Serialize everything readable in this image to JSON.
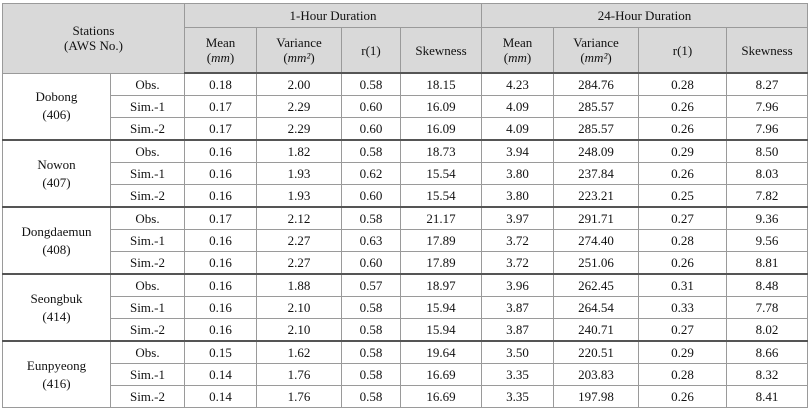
{
  "header": {
    "stations_line1": "Stations",
    "stations_line2": "(AWS No.)",
    "group_1hour": "1-Hour Duration",
    "group_24hour": "24-Hour Duration",
    "columns": [
      {
        "top": "Mean",
        "bottom": "mm"
      },
      {
        "top": "Variance",
        "bottom": "mm²"
      },
      {
        "label": "r(1)"
      },
      {
        "label": "Skewness"
      },
      {
        "top": "Mean",
        "bottom": "mm"
      },
      {
        "top": "Variance",
        "bottom": "mm²"
      },
      {
        "label": "r(1)"
      },
      {
        "label": "Skewness"
      }
    ]
  },
  "stations": [
    {
      "name": "Dobong",
      "aws": "(406)",
      "rows": [
        {
          "type": "Obs.",
          "values": [
            "0.18",
            "2.00",
            "0.58",
            "18.15",
            "4.23",
            "284.76",
            "0.28",
            "8.27"
          ]
        },
        {
          "type": "Sim.-1",
          "values": [
            "0.17",
            "2.29",
            "0.60",
            "16.09",
            "4.09",
            "285.57",
            "0.26",
            "7.96"
          ]
        },
        {
          "type": "Sim.-2",
          "values": [
            "0.17",
            "2.29",
            "0.60",
            "16.09",
            "4.09",
            "285.57",
            "0.26",
            "7.96"
          ]
        }
      ]
    },
    {
      "name": "Nowon",
      "aws": "(407)",
      "rows": [
        {
          "type": "Obs.",
          "values": [
            "0.16",
            "1.82",
            "0.58",
            "18.73",
            "3.94",
            "248.09",
            "0.29",
            "8.50"
          ]
        },
        {
          "type": "Sim.-1",
          "values": [
            "0.16",
            "1.93",
            "0.62",
            "15.54",
            "3.80",
            "237.84",
            "0.26",
            "8.03"
          ]
        },
        {
          "type": "Sim.-2",
          "values": [
            "0.16",
            "1.93",
            "0.60",
            "15.54",
            "3.80",
            "223.21",
            "0.25",
            "7.82"
          ]
        }
      ]
    },
    {
      "name": "Dongdaemun",
      "aws": "(408)",
      "rows": [
        {
          "type": "Obs.",
          "values": [
            "0.17",
            "2.12",
            "0.58",
            "21.17",
            "3.97",
            "291.71",
            "0.27",
            "9.36"
          ]
        },
        {
          "type": "Sim.-1",
          "values": [
            "0.16",
            "2.27",
            "0.63",
            "17.89",
            "3.72",
            "274.40",
            "0.28",
            "9.56"
          ]
        },
        {
          "type": "Sim.-2",
          "values": [
            "0.16",
            "2.27",
            "0.60",
            "17.89",
            "3.72",
            "251.06",
            "0.26",
            "8.81"
          ]
        }
      ]
    },
    {
      "name": "Seongbuk",
      "aws": "(414)",
      "rows": [
        {
          "type": "Obs.",
          "values": [
            "0.16",
            "1.88",
            "0.57",
            "18.97",
            "3.96",
            "262.45",
            "0.31",
            "8.48"
          ]
        },
        {
          "type": "Sim.-1",
          "values": [
            "0.16",
            "2.10",
            "0.58",
            "15.94",
            "3.87",
            "264.54",
            "0.33",
            "7.78"
          ]
        },
        {
          "type": "Sim.-2",
          "values": [
            "0.16",
            "2.10",
            "0.58",
            "15.94",
            "3.87",
            "240.71",
            "0.27",
            "8.02"
          ]
        }
      ]
    },
    {
      "name": "Eunpyeong",
      "aws": "(416)",
      "rows": [
        {
          "type": "Obs.",
          "values": [
            "0.15",
            "1.62",
            "0.58",
            "19.64",
            "3.50",
            "220.51",
            "0.29",
            "8.66"
          ]
        },
        {
          "type": "Sim.-1",
          "values": [
            "0.14",
            "1.76",
            "0.58",
            "16.69",
            "3.35",
            "203.83",
            "0.28",
            "8.32"
          ]
        },
        {
          "type": "Sim.-2",
          "values": [
            "0.14",
            "1.76",
            "0.58",
            "16.69",
            "3.35",
            "197.98",
            "0.26",
            "8.41"
          ]
        }
      ]
    }
  ]
}
